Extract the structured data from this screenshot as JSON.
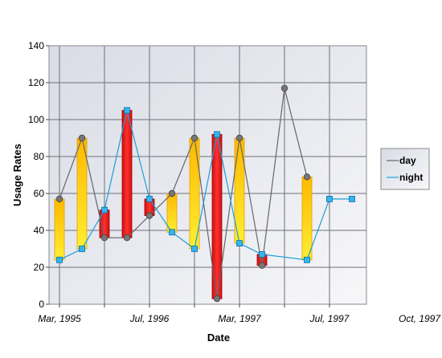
{
  "chart_data": {
    "type": "line",
    "xlabel": "Date",
    "ylabel": "Usage Rates",
    "ylim": [
      0,
      140
    ],
    "y_ticks": [
      0,
      20,
      40,
      60,
      80,
      100,
      120,
      140
    ],
    "x_tick_labels": [
      "Mar, 1995",
      "Jul, 1996",
      "Mar, 1997",
      "Jul, 1997",
      "Oct, 1997"
    ],
    "grid": true,
    "legend_position": "right",
    "series": [
      {
        "name": "day",
        "color": "#666666",
        "marker": "circle",
        "values": [
          57,
          90,
          36,
          36,
          48,
          60,
          90,
          3,
          90,
          21,
          117,
          69,
          null,
          null
        ]
      },
      {
        "name": "night",
        "color": "#1a9fd8",
        "marker": "square",
        "values": [
          24,
          30,
          51,
          105,
          57,
          39,
          30,
          92,
          33,
          27,
          null,
          24,
          57,
          57
        ]
      }
    ],
    "range_bar_color_up": "#ffcc00",
    "range_bar_color_down": "#ee2222"
  }
}
